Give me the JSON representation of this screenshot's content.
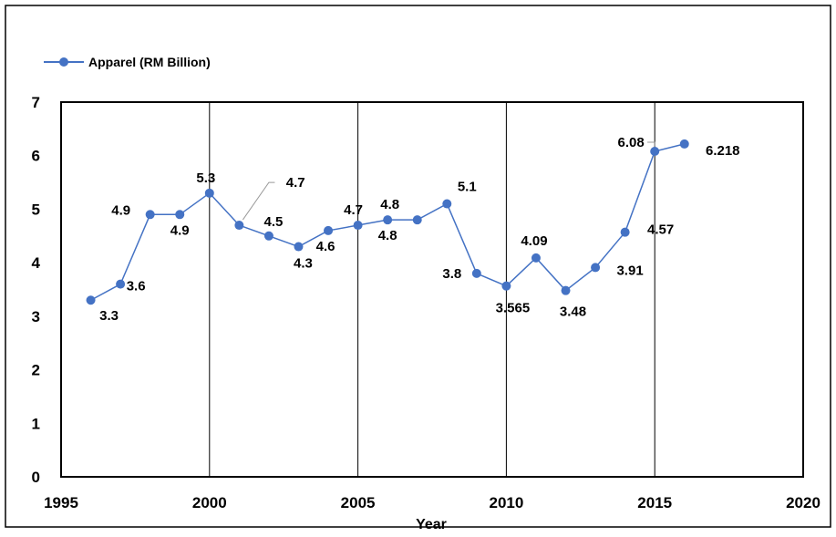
{
  "chart_data": {
    "type": "line",
    "title": "",
    "xlabel": "Year",
    "ylabel": "",
    "xlim": [
      1995,
      2020
    ],
    "ylim": [
      0,
      7
    ],
    "x_ticks": [
      "1995",
      "2000",
      "2005",
      "2010",
      "2015",
      "2020"
    ],
    "y_ticks": [
      "0",
      "1",
      "2",
      "3",
      "4",
      "5",
      "6",
      "7"
    ],
    "grid": "vertical lines at 2000, 2005, 2010, 2015",
    "legend_position": "top-left",
    "series": [
      {
        "name": "Apparel (RM Billion)",
        "color": "#4472C4",
        "x": [
          1996,
          1997,
          1998,
          1999,
          2000,
          2001,
          2002,
          2003,
          2004,
          2005,
          2006,
          2007,
          2008,
          2009,
          2010,
          2011,
          2012,
          2013,
          2014,
          2015,
          2016
        ],
        "values": [
          3.3,
          3.6,
          4.9,
          4.9,
          5.3,
          4.7,
          4.5,
          4.3,
          4.6,
          4.7,
          4.8,
          4.8,
          5.1,
          3.8,
          3.565,
          4.09,
          3.48,
          3.91,
          4.57,
          6.08,
          6.218
        ],
        "labels": [
          "3.3",
          "3.6",
          "4.9",
          "4.9",
          "5.3",
          "4.7",
          "4.5",
          "4.3",
          "4.6",
          "4.7",
          "4.8",
          "4.8",
          "5.1",
          "3.8",
          "3.565",
          "4.09",
          "3.48",
          "3.91",
          "4.57",
          "6.08",
          "6.218"
        ]
      }
    ]
  }
}
